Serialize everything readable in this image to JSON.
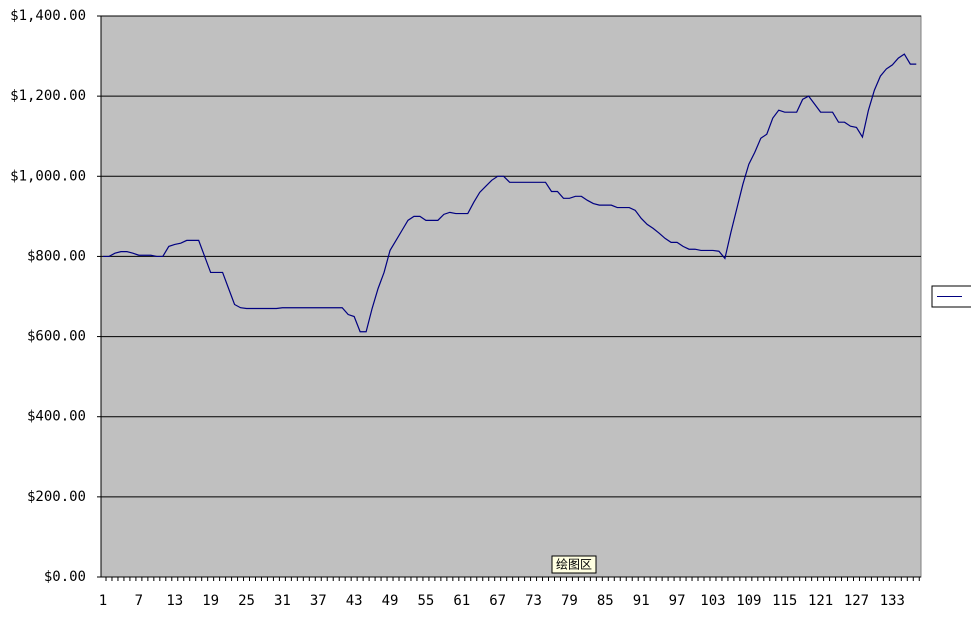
{
  "chart_data": {
    "type": "line",
    "categories": [
      "1",
      null,
      null,
      null,
      null,
      null,
      "7",
      null,
      null,
      null,
      null,
      null,
      "13",
      null,
      null,
      null,
      null,
      null,
      "19",
      null,
      null,
      null,
      null,
      null,
      "25",
      null,
      null,
      null,
      null,
      null,
      "31",
      null,
      null,
      null,
      null,
      null,
      "37",
      null,
      null,
      null,
      null,
      null,
      "43",
      null,
      null,
      null,
      null,
      null,
      "49",
      null,
      null,
      null,
      null,
      null,
      "55",
      null,
      null,
      null,
      null,
      null,
      "61",
      null,
      null,
      null,
      null,
      null,
      "67",
      null,
      null,
      null,
      null,
      null,
      "73",
      null,
      null,
      null,
      null,
      null,
      "79",
      null,
      null,
      null,
      null,
      null,
      "85",
      null,
      null,
      null,
      null,
      null,
      "91",
      null,
      null,
      null,
      null,
      null,
      "97",
      null,
      null,
      null,
      null,
      null,
      "103",
      null,
      null,
      null,
      null,
      null,
      "109",
      null,
      null,
      null,
      null,
      null,
      "115",
      null,
      null,
      null,
      null,
      null,
      "121",
      null,
      null,
      null,
      null,
      null,
      "127",
      null,
      null,
      null,
      null,
      null,
      "133",
      null,
      null,
      null,
      null
    ],
    "series": [
      {
        "color": "#000080",
        "values": [
          800,
          800,
          808,
          812,
          812,
          808,
          803,
          803,
          803,
          800,
          800,
          825,
          830,
          833,
          840,
          840,
          840,
          800,
          760,
          760,
          760,
          720,
          680,
          672,
          670,
          670,
          670,
          670,
          670,
          670,
          672,
          672,
          672,
          672,
          672,
          672,
          672,
          672,
          672,
          672,
          672,
          655,
          650,
          612,
          612,
          670,
          720,
          760,
          815,
          840,
          865,
          890,
          900,
          900,
          890,
          890,
          890,
          905,
          910,
          907,
          907,
          907,
          935,
          960,
          975,
          990,
          1000,
          1000,
          985,
          985,
          985,
          985,
          985,
          985,
          985,
          962,
          962,
          945,
          945,
          950,
          950,
          940,
          932,
          928,
          928,
          928,
          922,
          922,
          922,
          915,
          895,
          880,
          870,
          858,
          845,
          835,
          835,
          825,
          818,
          818,
          815,
          815,
          815,
          813,
          795,
          860,
          920,
          980,
          1030,
          1060,
          1095,
          1105,
          1145,
          1165,
          1160,
          1160,
          1160,
          1192,
          1200,
          1180,
          1160,
          1160,
          1160,
          1135,
          1135,
          1125,
          1122,
          1098,
          1165,
          1215,
          1250,
          1268,
          1278,
          1295,
          1305,
          1280,
          1280
        ]
      }
    ],
    "ylim": [
      0,
      1400
    ],
    "yticks": [
      {
        "value": 0,
        "label": "$0.00"
      },
      {
        "value": 200,
        "label": "$200.00"
      },
      {
        "value": 400,
        "label": "$400.00"
      },
      {
        "value": 600,
        "label": "$600.00"
      },
      {
        "value": 800,
        "label": "$800.00"
      },
      {
        "value": 1000,
        "label": "$1,000.00"
      },
      {
        "value": 1200,
        "label": "$1,200.00"
      },
      {
        "value": 1400,
        "label": "$1,400.00"
      }
    ],
    "grid": true,
    "plot_color": "#c0c0c0",
    "annotation": "绘图区"
  }
}
